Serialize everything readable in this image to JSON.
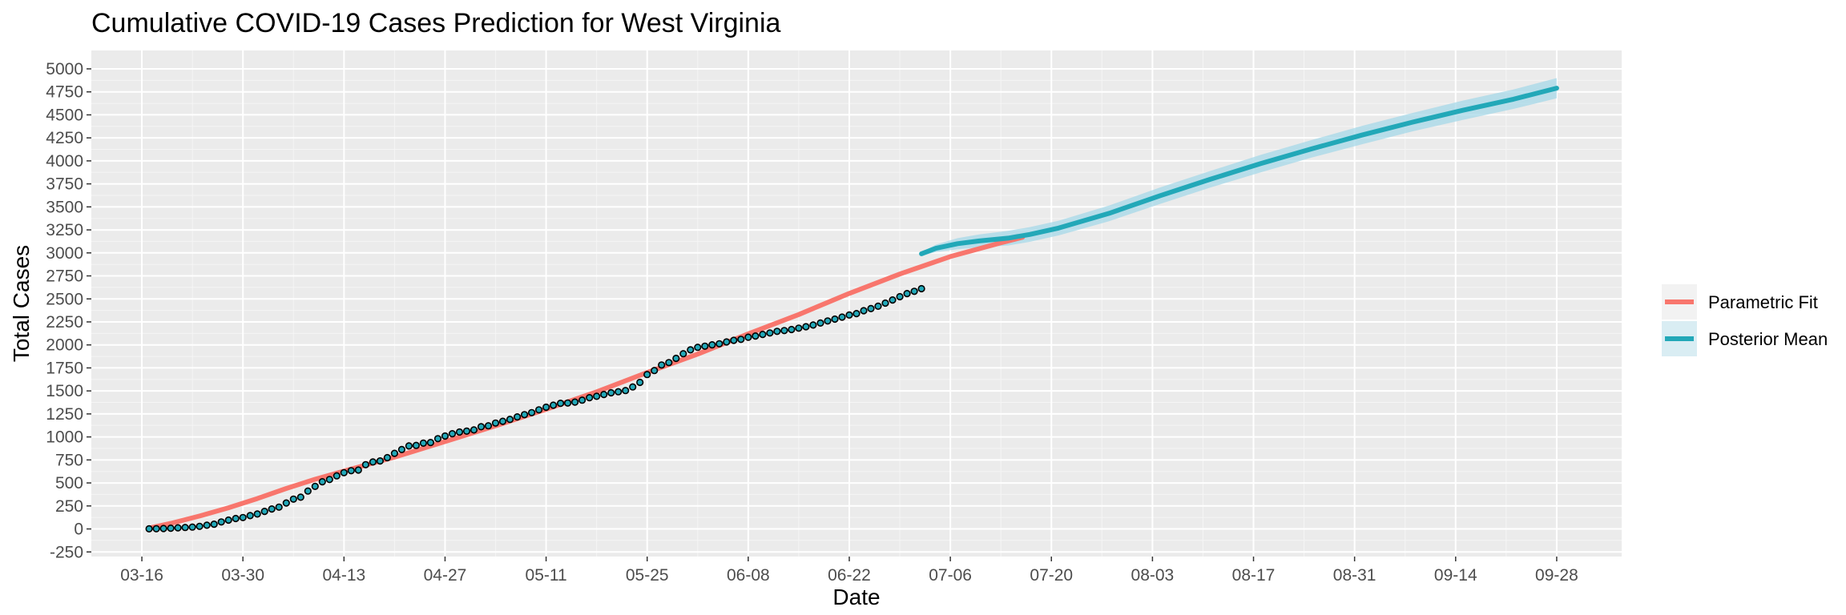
{
  "chart_data": {
    "type": "line",
    "title": "Cumulative COVID-19 Cases Prediction for West Virginia",
    "xlabel": "Date",
    "ylabel": "Total Cases",
    "x_tick_labels": [
      "03-16",
      "03-30",
      "04-13",
      "04-27",
      "05-11",
      "05-25",
      "06-08",
      "06-22",
      "07-06",
      "07-20",
      "08-03",
      "08-17",
      "08-31",
      "09-14",
      "09-28"
    ],
    "x_tick_dates": [
      "2020-03-16",
      "2020-03-30",
      "2020-04-13",
      "2020-04-27",
      "2020-05-11",
      "2020-05-25",
      "2020-06-08",
      "2020-06-22",
      "2020-07-06",
      "2020-07-20",
      "2020-08-03",
      "2020-08-17",
      "2020-08-31",
      "2020-09-14",
      "2020-09-28"
    ],
    "xlim": [
      "2020-03-09",
      "2020-10-07"
    ],
    "y_ticks": [
      -250,
      0,
      250,
      500,
      750,
      1000,
      1250,
      1500,
      1750,
      2000,
      2250,
      2500,
      2750,
      3000,
      3250,
      3500,
      3750,
      4000,
      4250,
      4500,
      4750,
      5000
    ],
    "ylim": [
      -300,
      5200
    ],
    "grid": true,
    "legend_position": "right",
    "series": [
      {
        "name": "Parametric Fit",
        "kind": "line",
        "color": "#f8766d",
        "points": [
          [
            "2020-03-17",
            10
          ],
          [
            "2020-03-20",
            60
          ],
          [
            "2020-03-24",
            140
          ],
          [
            "2020-03-28",
            230
          ],
          [
            "2020-04-01",
            330
          ],
          [
            "2020-04-05",
            440
          ],
          [
            "2020-04-09",
            540
          ],
          [
            "2020-04-14",
            650
          ],
          [
            "2020-04-20",
            780
          ],
          [
            "2020-04-27",
            950
          ],
          [
            "2020-05-04",
            1120
          ],
          [
            "2020-05-11",
            1300
          ],
          [
            "2020-05-18",
            1490
          ],
          [
            "2020-05-25",
            1700
          ],
          [
            "2020-06-01",
            1900
          ],
          [
            "2020-06-08",
            2120
          ],
          [
            "2020-06-15",
            2330
          ],
          [
            "2020-06-22",
            2560
          ],
          [
            "2020-06-29",
            2770
          ],
          [
            "2020-07-06",
            2960
          ],
          [
            "2020-07-13",
            3110
          ],
          [
            "2020-07-16",
            3170
          ]
        ]
      },
      {
        "name": "Posterior Mean",
        "kind": "line_with_band",
        "color": "#22a8b8",
        "band_color": "#a6d8e8",
        "points": [
          [
            "2020-07-02",
            2990
          ],
          [
            "2020-07-04",
            3050
          ],
          [
            "2020-07-07",
            3100
          ],
          [
            "2020-07-10",
            3130
          ],
          [
            "2020-07-14",
            3160
          ],
          [
            "2020-07-17",
            3200
          ],
          [
            "2020-07-21",
            3270
          ],
          [
            "2020-07-28",
            3430
          ],
          [
            "2020-08-04",
            3620
          ],
          [
            "2020-08-11",
            3800
          ],
          [
            "2020-08-18",
            3970
          ],
          [
            "2020-08-25",
            4130
          ],
          [
            "2020-09-01",
            4280
          ],
          [
            "2020-09-08",
            4420
          ],
          [
            "2020-09-15",
            4550
          ],
          [
            "2020-09-22",
            4670
          ],
          [
            "2020-09-28",
            4790
          ]
        ],
        "band_halfwidth": [
          20,
          40,
          60,
          70,
          80,
          80,
          80,
          85,
          90,
          90,
          95,
          95,
          100,
          100,
          105,
          105,
          110
        ]
      }
    ],
    "observed": {
      "marker": "circle",
      "fill": "#22a8b8",
      "edge": "#000000",
      "dates": [
        "2020-03-17",
        "2020-03-18",
        "2020-03-19",
        "2020-03-20",
        "2020-03-21",
        "2020-03-22",
        "2020-03-23",
        "2020-03-24",
        "2020-03-25",
        "2020-03-26",
        "2020-03-27",
        "2020-03-28",
        "2020-03-29",
        "2020-03-30",
        "2020-03-31",
        "2020-04-01",
        "2020-04-02",
        "2020-04-03",
        "2020-04-04",
        "2020-04-05",
        "2020-04-06",
        "2020-04-07",
        "2020-04-08",
        "2020-04-09",
        "2020-04-10",
        "2020-04-11",
        "2020-04-12",
        "2020-04-13",
        "2020-04-14",
        "2020-04-15",
        "2020-04-16",
        "2020-04-17",
        "2020-04-18",
        "2020-04-19",
        "2020-04-20",
        "2020-04-21",
        "2020-04-22",
        "2020-04-23",
        "2020-04-24",
        "2020-04-25",
        "2020-04-26",
        "2020-04-27",
        "2020-04-28",
        "2020-04-29",
        "2020-04-30",
        "2020-05-01",
        "2020-05-02",
        "2020-05-03",
        "2020-05-04",
        "2020-05-05",
        "2020-05-06",
        "2020-05-07",
        "2020-05-08",
        "2020-05-09",
        "2020-05-10",
        "2020-05-11",
        "2020-05-12",
        "2020-05-13",
        "2020-05-14",
        "2020-05-15",
        "2020-05-16",
        "2020-05-17",
        "2020-05-18",
        "2020-05-19",
        "2020-05-20",
        "2020-05-21",
        "2020-05-22",
        "2020-05-23",
        "2020-05-24",
        "2020-05-25",
        "2020-05-26",
        "2020-05-27",
        "2020-05-28",
        "2020-05-29",
        "2020-05-30",
        "2020-05-31",
        "2020-06-01",
        "2020-06-02",
        "2020-06-03",
        "2020-06-04",
        "2020-06-05",
        "2020-06-06",
        "2020-06-07",
        "2020-06-08",
        "2020-06-09",
        "2020-06-10",
        "2020-06-11",
        "2020-06-12",
        "2020-06-13",
        "2020-06-14",
        "2020-06-15",
        "2020-06-16",
        "2020-06-17",
        "2020-06-18",
        "2020-06-19",
        "2020-06-20",
        "2020-06-21",
        "2020-06-22",
        "2020-06-23",
        "2020-06-24",
        "2020-06-25",
        "2020-06-26",
        "2020-06-27",
        "2020-06-28",
        "2020-06-29",
        "2020-06-30",
        "2020-07-01",
        "2020-07-02"
      ],
      "values": [
        1,
        2,
        5,
        8,
        12,
        16,
        20,
        28,
        40,
        52,
        76,
        96,
        113,
        124,
        145,
        162,
        191,
        217,
        237,
        282,
        324,
        345,
        412,
        462,
        513,
        537,
        577,
        611,
        633,
        640,
        698,
        728,
        739,
        775,
        822,
        863,
        902,
        908,
        932,
        939,
        981,
        1010,
        1035,
        1053,
        1063,
        1076,
        1111,
        1121,
        1151,
        1170,
        1191,
        1218,
        1242,
        1264,
        1294,
        1323,
        1345,
        1366,
        1368,
        1379,
        1400,
        1427,
        1441,
        1461,
        1480,
        1491,
        1504,
        1543,
        1593,
        1678,
        1722,
        1782,
        1808,
        1854,
        1904,
        1946,
        1974,
        1986,
        2001,
        2012,
        2032,
        2050,
        2060,
        2084,
        2097,
        2114,
        2130,
        2147,
        2156,
        2167,
        2182,
        2198,
        2216,
        2238,
        2260,
        2280,
        2302,
        2325,
        2340,
        2372,
        2394,
        2420,
        2454,
        2488,
        2524,
        2558,
        2582,
        2611
      ]
    }
  }
}
